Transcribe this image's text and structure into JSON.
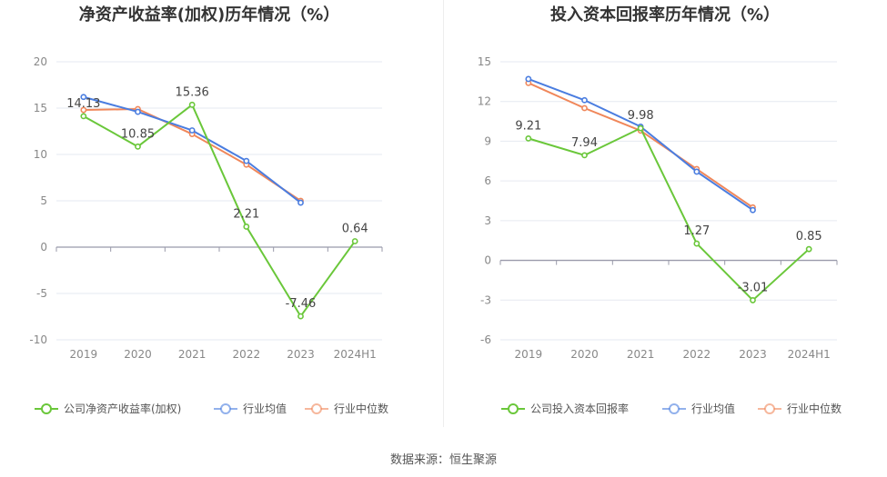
{
  "source": "数据来源：恒生聚源",
  "colors": {
    "company": "#6ac73a",
    "avg": "#4a7de0",
    "median": "#f0875a",
    "grid": "#e6e9f0",
    "zero": "#999aaa"
  },
  "chart_data": [
    {
      "type": "line",
      "title": "净资产收益率(加权)历年情况（%）",
      "categories": [
        "2019",
        "2020",
        "2021",
        "2022",
        "2023",
        "2024H1"
      ],
      "ylim": [
        -10,
        20
      ],
      "yticks": [
        20,
        15,
        10,
        5,
        0,
        -5,
        -10
      ],
      "ytick_labels": [
        "20",
        "15",
        "10",
        "5",
        "0",
        "-5",
        "-10"
      ],
      "series": [
        {
          "name": "公司净资产收益率(加权)",
          "key": "company",
          "values": [
            14.13,
            10.85,
            15.36,
            2.21,
            -7.46,
            0.64
          ],
          "labels": [
            "14.13",
            "10.85",
            "15.36",
            "2.21",
            "-7.46",
            "0.64"
          ]
        },
        {
          "name": "行业均值",
          "key": "avg",
          "values": [
            16.2,
            14.6,
            12.6,
            9.3,
            4.8,
            null
          ]
        },
        {
          "name": "行业中位数",
          "key": "median",
          "values": [
            14.8,
            14.9,
            12.2,
            8.9,
            5.0,
            null
          ]
        }
      ]
    },
    {
      "type": "line",
      "title": "投入资本回报率历年情况（%）",
      "categories": [
        "2019",
        "2020",
        "2021",
        "2022",
        "2023",
        "2024H1"
      ],
      "ylim": [
        -6,
        15
      ],
      "yticks": [
        15,
        12,
        9,
        6,
        3,
        0,
        -3,
        -6
      ],
      "ytick_labels": [
        "15",
        "12",
        "9",
        "6",
        "3",
        "0",
        "-3",
        "-6"
      ],
      "series": [
        {
          "name": "公司投入资本回报率",
          "key": "company",
          "values": [
            9.21,
            7.94,
            9.98,
            1.27,
            -3.01,
            0.85
          ],
          "labels": [
            "9.21",
            "7.94",
            "9.98",
            "1.27",
            "-3.01",
            "0.85"
          ]
        },
        {
          "name": "行业均值",
          "key": "avg",
          "values": [
            13.7,
            12.1,
            10.1,
            6.7,
            3.8,
            null
          ]
        },
        {
          "name": "行业中位数",
          "key": "median",
          "values": [
            13.4,
            11.5,
            9.8,
            6.9,
            4.0,
            null
          ]
        }
      ]
    }
  ]
}
